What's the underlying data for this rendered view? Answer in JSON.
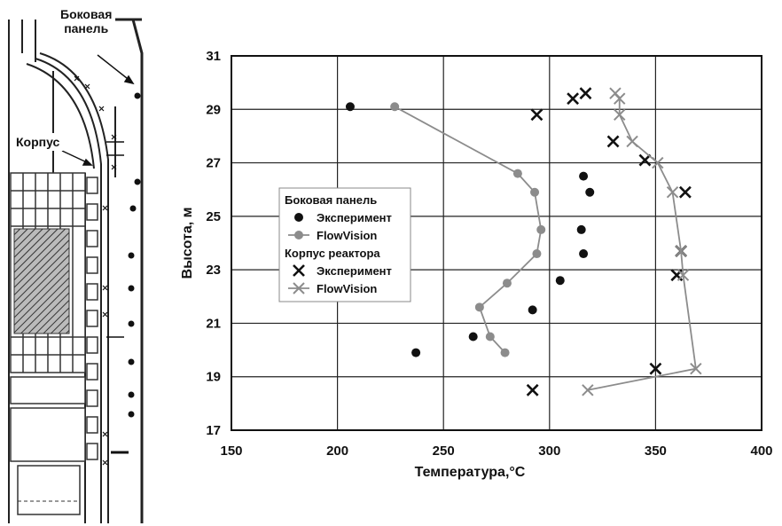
{
  "schematic": {
    "label_side_panel": "Боковая\nпанель",
    "label_body": "Корпус"
  },
  "chart_data": {
    "type": "scatter",
    "xlabel": "Температура,°C",
    "ylabel": "Высота, м",
    "xlim": [
      150,
      400
    ],
    "ylim": [
      17,
      31
    ],
    "xticks": [
      150,
      200,
      250,
      300,
      350,
      400
    ],
    "yticks": [
      17,
      19,
      21,
      23,
      25,
      27,
      29,
      31
    ],
    "grid": true,
    "legend": {
      "placement": "left-middle",
      "groups": [
        {
          "title": "Боковая панель",
          "entries": [
            "Эксперимент",
            "FlowVision"
          ]
        },
        {
          "title": "Корпус реактора",
          "entries": [
            "Эксперимент",
            "FlowVision"
          ]
        }
      ]
    },
    "series": [
      {
        "group": "Боковая панель",
        "name": "Эксперимент",
        "marker": "dot",
        "line": false,
        "color": "#111111",
        "points": [
          [
            206,
            29.1
          ],
          [
            316,
            26.5
          ],
          [
            319,
            25.9
          ],
          [
            315,
            24.5
          ],
          [
            316,
            23.6
          ],
          [
            305,
            22.6
          ],
          [
            292,
            21.5
          ],
          [
            264,
            20.5
          ],
          [
            237,
            19.9
          ]
        ]
      },
      {
        "group": "Боковая панель",
        "name": "FlowVision",
        "marker": "dot",
        "line": true,
        "color": "#8c8c8c",
        "points": [
          [
            227,
            29.1
          ],
          [
            285,
            26.6
          ],
          [
            293,
            25.9
          ],
          [
            296,
            24.5
          ],
          [
            294,
            23.6
          ],
          [
            280,
            22.5
          ],
          [
            267,
            21.6
          ],
          [
            272,
            20.5
          ],
          [
            279,
            19.9
          ]
        ]
      },
      {
        "group": "Корпус реактора",
        "name": "Эксперимент",
        "marker": "x",
        "line": false,
        "color": "#111111",
        "points": [
          [
            294,
            28.8
          ],
          [
            311,
            29.4
          ],
          [
            317,
            29.6
          ],
          [
            330,
            27.8
          ],
          [
            345,
            27.1
          ],
          [
            364,
            25.9
          ],
          [
            362,
            23.7
          ],
          [
            360,
            22.8
          ],
          [
            350,
            19.3
          ],
          [
            292,
            18.5
          ]
        ]
      },
      {
        "group": "Корпус реактора",
        "name": "FlowVision",
        "marker": "x",
        "line": true,
        "color": "#8c8c8c",
        "points": [
          [
            331,
            29.6
          ],
          [
            333,
            29.4
          ],
          [
            333,
            28.8
          ],
          [
            339,
            27.8
          ],
          [
            351,
            27.0
          ],
          [
            358,
            25.9
          ],
          [
            362,
            23.7
          ],
          [
            363,
            22.8
          ],
          [
            369,
            19.3
          ],
          [
            318,
            18.5
          ]
        ]
      }
    ]
  }
}
